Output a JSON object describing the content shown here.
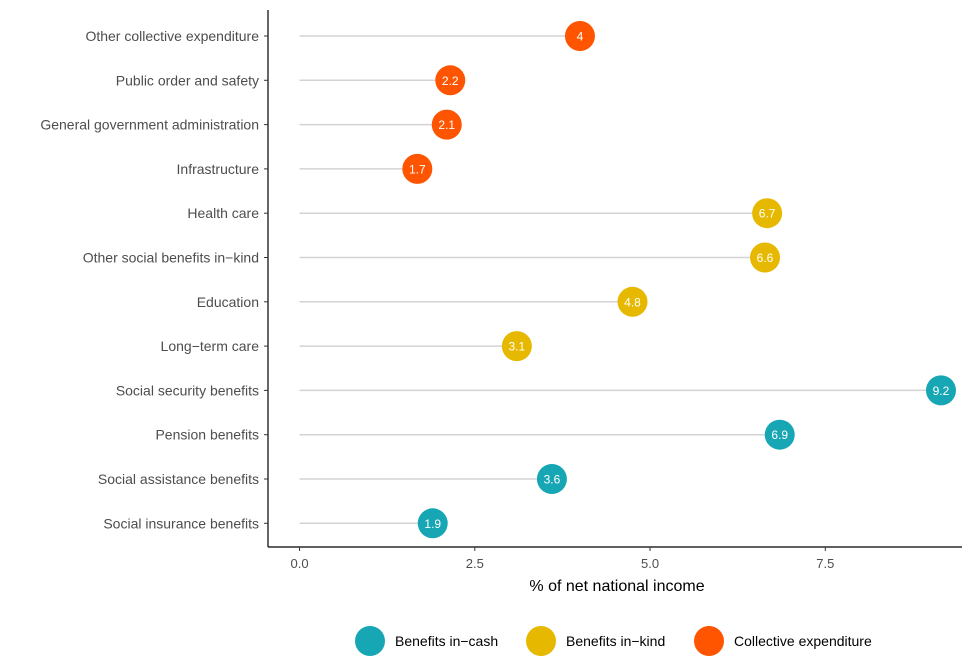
{
  "chart_data": {
    "type": "lollipop",
    "title": "",
    "xlabel": "% of net national income",
    "ylabel": "",
    "xlim": [
      -0.45,
      9.45
    ],
    "x_ticks": [
      0.0,
      2.5,
      5.0,
      7.5
    ],
    "x_tick_labels": [
      "0.0",
      "2.5",
      "5.0",
      "7.5"
    ],
    "grid": false,
    "legend_position": "bottom",
    "categories": [
      "Other collective expenditure",
      "Public order and safety",
      "General government administration",
      "Infrastructure",
      "Health care",
      "Other social benefits in−kind",
      "Education",
      "Long−term care",
      "Social security benefits",
      "Pension benefits",
      "Social assistance benefits",
      "Social insurance benefits"
    ],
    "values": [
      4.0,
      2.15,
      2.1,
      1.68,
      6.67,
      6.64,
      4.75,
      3.1,
      9.15,
      6.85,
      3.6,
      1.9
    ],
    "value_labels": [
      "4",
      "2.2",
      "2.1",
      "1.7",
      "6.7",
      "6.6",
      "4.8",
      "3.1",
      "9.2",
      "6.9",
      "3.6",
      "1.9"
    ],
    "groups": [
      "Collective expenditure",
      "Collective expenditure",
      "Collective expenditure",
      "Collective expenditure",
      "Benefits in−kind",
      "Benefits in−kind",
      "Benefits in−kind",
      "Benefits in−kind",
      "Benefits in−cash",
      "Benefits in−cash",
      "Benefits in−cash",
      "Benefits in−cash"
    ],
    "series": [
      {
        "name": "Benefits in−cash",
        "color": "#17a6b3"
      },
      {
        "name": "Benefits in−kind",
        "color": "#e6b800"
      },
      {
        "name": "Collective expenditure",
        "color": "#ff5400"
      }
    ]
  }
}
